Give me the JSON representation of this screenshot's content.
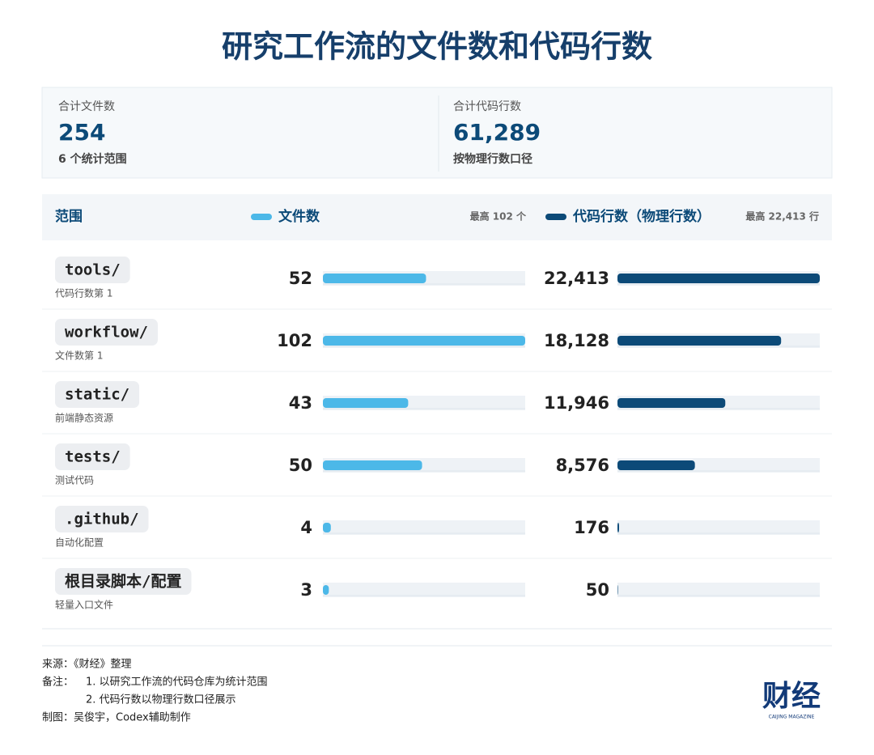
{
  "chart_data": {
    "type": "bar",
    "title": "研究工作流的文件数和代码行数",
    "summary": [
      {
        "label": "合计文件数",
        "value": 254,
        "note": "6 个统计范围"
      },
      {
        "label": "合计代码行数",
        "value": {
          "value": 61289,
          "label": "61,289"
        },
        "note": "按物理行数口径"
      }
    ],
    "scope_header": "范围",
    "categories": [
      "tools/",
      "workflow/",
      "static/",
      "tests/",
      ".github/",
      "根目录脚本/配置"
    ],
    "category_notes": [
      "代码行数第 1",
      "文件数第 1",
      "前端静态资源",
      "测试代码",
      "自动化配置",
      "轻量入口文件"
    ],
    "series": [
      {
        "name": "文件数",
        "color": "#4cb8e8",
        "values": [
          52,
          102,
          43,
          50,
          4,
          3
        ],
        "max_label": "最高 102 个",
        "xlim": [
          0,
          102
        ]
      },
      {
        "name": "代码行数（物理行数）",
        "color": "#0c4a78",
        "values": [
          22413,
          18128,
          11946,
          8576,
          176,
          50
        ],
        "value_labels": [
          "22,413",
          "18,128",
          "11,946",
          "8,576",
          "176",
          "50"
        ],
        "max_label": "最高 22,413 行",
        "xlim": [
          0,
          22413
        ]
      }
    ]
  },
  "footer": {
    "source": "来源：《财经》整理",
    "notes_label": "备注：",
    "notes": [
      "1. 以研究工作流的代码仓库为统计范围",
      "2. 代码行数以物理行数口径展示"
    ],
    "credit": "制图：吴俊宇，Codex辅助制作",
    "logo": "财经",
    "logo_sub": "CAIJING MAGAZINE"
  }
}
